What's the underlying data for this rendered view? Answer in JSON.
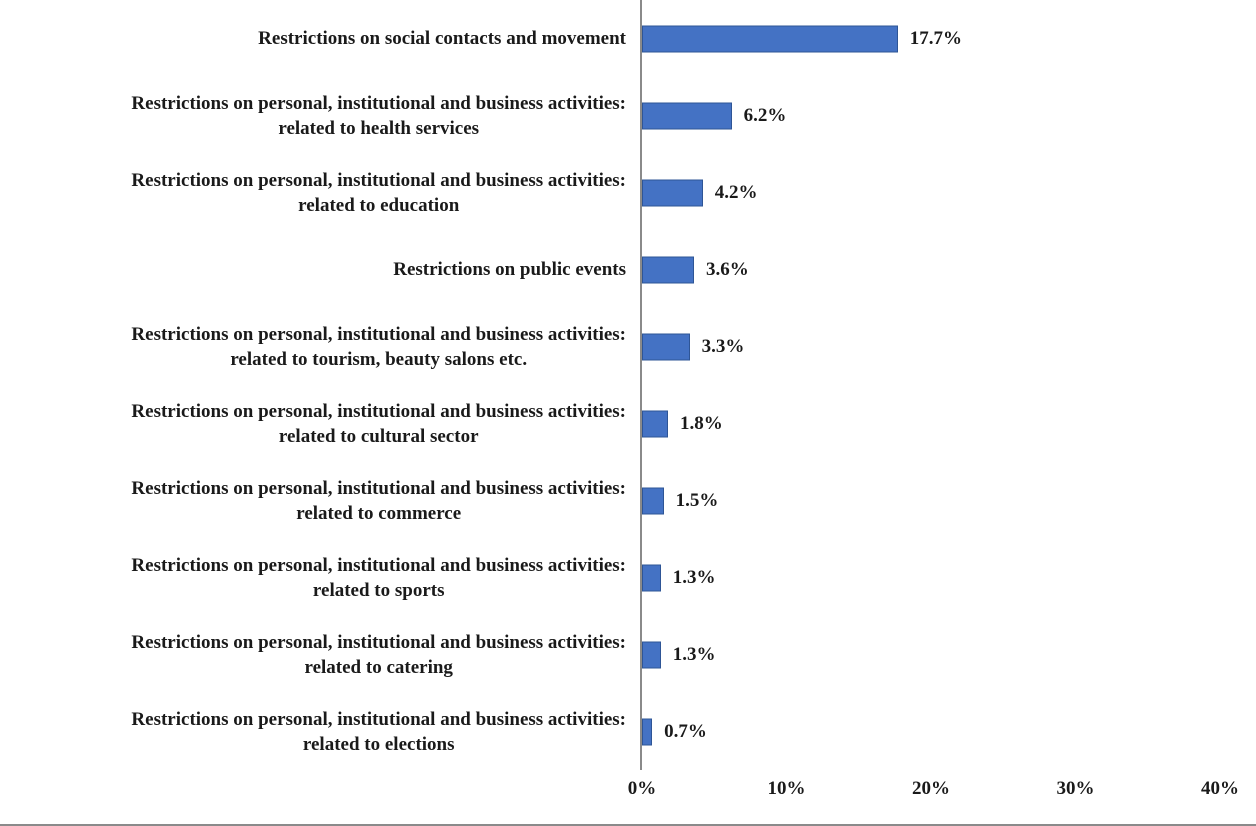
{
  "chart_data": {
    "type": "bar",
    "orientation": "horizontal",
    "title": "",
    "xlabel": "",
    "ylabel": "",
    "grid": "off",
    "legend": "none",
    "xlim": [
      0,
      40
    ],
    "x_ticks": {
      "labels": [
        "0%",
        "10%",
        "20%",
        "30%",
        "40%"
      ],
      "values": [
        0,
        10,
        20,
        30,
        40
      ]
    },
    "categories": [
      "Restrictions on social contacts and movement",
      "Restrictions on personal, institutional and business activities: related to health services",
      "Restrictions on personal, institutional and business activities: related to education",
      "Restrictions on public events",
      "Restrictions on personal, institutional and business activities: related to tourism, beauty salons etc.",
      "Restrictions on personal, institutional and business activities: related to cultural sector",
      "Restrictions on personal, institutional and business activities: related to commerce",
      "Restrictions on personal, institutional and business activities: related to sports",
      "Restrictions on personal, institutional and business activities: related to catering",
      "Restrictions on personal, institutional and business activities: related to elections"
    ],
    "categories_lines": [
      [
        "Restrictions on social contacts and movement"
      ],
      [
        "Restrictions on personal, institutional and business activities:",
        "related to health services"
      ],
      [
        "Restrictions on personal, institutional and business activities:",
        "related to education"
      ],
      [
        "Restrictions on public events"
      ],
      [
        "Restrictions on personal, institutional and business activities:",
        "related to tourism, beauty salons etc."
      ],
      [
        "Restrictions on personal, institutional and business activities:",
        "related to cultural sector"
      ],
      [
        "Restrictions on personal, institutional and business activities:",
        "related to commerce"
      ],
      [
        "Restrictions on personal, institutional and business activities:",
        "related to sports"
      ],
      [
        "Restrictions on personal, institutional and business activities:",
        "related to catering"
      ],
      [
        "Restrictions on personal, institutional and business activities:",
        "related to elections"
      ]
    ],
    "values": [
      17.7,
      6.2,
      4.2,
      3.6,
      3.3,
      1.8,
      1.5,
      1.3,
      1.3,
      0.7
    ],
    "value_labels": [
      "17.7%",
      "6.2%",
      "4.2%",
      "3.6%",
      "3.3%",
      "1.8%",
      "1.5%",
      "1.3%",
      "1.3%",
      "0.7%"
    ],
    "bar_color": "#4472C4",
    "bar_border_color": "#2E5596",
    "axis_color": "#8a8a8a",
    "text_color": "#1a1a1a"
  }
}
